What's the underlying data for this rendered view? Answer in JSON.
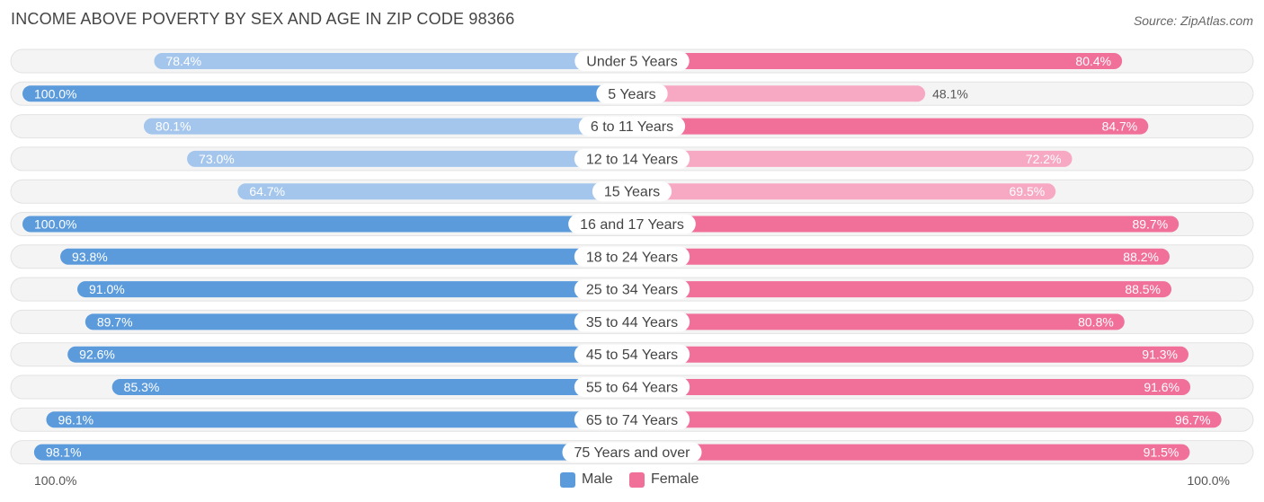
{
  "chart_data": {
    "type": "bar",
    "orientation": "horizontal-diverging",
    "title": "INCOME ABOVE POVERTY BY SEX AND AGE IN ZIP CODE 98366",
    "source": "Source: ZipAtlas.com",
    "categories": [
      "Under 5 Years",
      "5 Years",
      "6 to 11 Years",
      "12 to 14 Years",
      "15 Years",
      "16 and 17 Years",
      "18 to 24 Years",
      "25 to 34 Years",
      "35 to 44 Years",
      "45 to 54 Years",
      "55 to 64 Years",
      "65 to 74 Years",
      "75 Years and over"
    ],
    "series": [
      {
        "name": "Male",
        "values": [
          78.4,
          100.0,
          80.1,
          73.0,
          64.7,
          100.0,
          93.8,
          91.0,
          89.7,
          92.6,
          85.3,
          96.1,
          98.1
        ],
        "labels": [
          "78.4%",
          "100.0%",
          "80.1%",
          "73.0%",
          "64.7%",
          "100.0%",
          "93.8%",
          "91.0%",
          "89.7%",
          "92.6%",
          "85.3%",
          "96.1%",
          "98.1%"
        ]
      },
      {
        "name": "Female",
        "values": [
          80.4,
          48.1,
          84.7,
          72.2,
          69.5,
          89.7,
          88.2,
          88.5,
          80.8,
          91.3,
          91.6,
          96.7,
          91.5
        ],
        "labels": [
          "80.4%",
          "48.1%",
          "84.7%",
          "72.2%",
          "69.5%",
          "89.7%",
          "88.2%",
          "88.5%",
          "80.8%",
          "91.3%",
          "91.6%",
          "96.7%",
          "91.5%"
        ]
      }
    ],
    "xlim": [
      0,
      100
    ],
    "axis_left_label": "100.0%",
    "axis_right_label": "100.0%",
    "legend_position": "bottom-center",
    "colors": {
      "male_strong": "#5b9bdc",
      "male_light": "#a4c6ec",
      "female_strong": "#f0709a",
      "female_light": "#f7a9c3",
      "track": "#eeeeee"
    }
  }
}
